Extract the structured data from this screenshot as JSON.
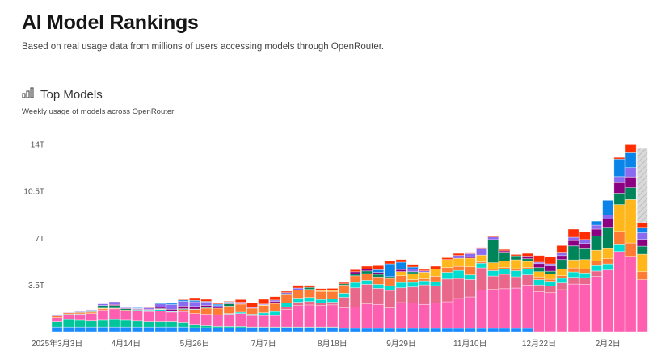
{
  "header": {
    "title": "AI Model Rankings",
    "subtitle": "Based on real usage data from millions of users accessing models through OpenRouter."
  },
  "section": {
    "icon": "bar-chart-icon",
    "title": "Top Models",
    "subtitle": "Weekly usage of models across OpenRouter"
  },
  "chart_data": {
    "type": "bar",
    "stacked": true,
    "title": "Top Models",
    "xlabel": "",
    "ylabel": "",
    "ylim": [
      0,
      14
    ],
    "y_unit": "T tokens",
    "y_ticks": [
      3.5,
      7,
      10.5,
      14
    ],
    "y_tick_labels": [
      "3.5T",
      "7T",
      "10.5T",
      "14T"
    ],
    "x_tick_labels": [
      {
        "index": 0,
        "label": "2025年3月3日"
      },
      {
        "index": 6,
        "label": "4月14日"
      },
      {
        "index": 12,
        "label": "5月26日"
      },
      {
        "index": 18,
        "label": "7月7日"
      },
      {
        "index": 24,
        "label": "8月18日"
      },
      {
        "index": 30,
        "label": "9月29日"
      },
      {
        "index": 36,
        "label": "11月10日"
      },
      {
        "index": 42,
        "label": "12月22日"
      },
      {
        "index": 48,
        "label": "2月2日"
      }
    ],
    "weeks": 52,
    "series_colors": [
      "#1a8cff",
      "#00c49a",
      "#ff5fb0",
      "#e8678a",
      "#00dcd0",
      "#ff7a33",
      "#ffb71b",
      "#00855a",
      "#8b0080",
      "#8a6af0",
      "#0a84e8",
      "#ff2d00",
      "#cfcfcf"
    ],
    "last_week_partial": true,
    "values_by_week": [
      [
        0.35,
        0.4,
        0.3,
        0,
        0,
        0.12,
        0,
        0,
        0,
        0.1,
        0,
        0,
        0
      ],
      [
        0.35,
        0.55,
        0.35,
        0,
        0.05,
        0.1,
        0,
        0,
        0,
        0.03,
        0,
        0,
        0
      ],
      [
        0.35,
        0.5,
        0.45,
        0,
        0.03,
        0.1,
        0,
        0.03,
        0,
        0.05,
        0,
        0,
        0
      ],
      [
        0.35,
        0.45,
        0.55,
        0,
        0,
        0.1,
        0.03,
        0.1,
        0,
        0.05,
        0,
        0,
        0
      ],
      [
        0.35,
        0.5,
        0.75,
        0,
        0,
        0.1,
        0.05,
        0.2,
        0,
        0.12,
        0,
        0,
        0
      ],
      [
        0.35,
        0.55,
        0.8,
        0,
        0,
        0.05,
        0,
        0.2,
        0.08,
        0.2,
        0,
        0,
        0
      ],
      [
        0.35,
        0.5,
        0.7,
        0,
        0,
        0.06,
        0,
        0.1,
        0.05,
        0.05,
        0,
        0,
        0
      ],
      [
        0.35,
        0.45,
        0.75,
        0,
        0.05,
        0,
        0,
        0.05,
        0.05,
        0.04,
        0.05,
        0,
        0
      ],
      [
        0.35,
        0.4,
        0.75,
        0,
        0.1,
        0,
        0,
        0.03,
        0.05,
        0.1,
        0,
        0.05,
        0
      ],
      [
        0.35,
        0.4,
        0.8,
        0,
        0.1,
        0,
        0.03,
        0.04,
        0.1,
        0.25,
        0.1,
        0,
        0
      ],
      [
        0.35,
        0.4,
        0.7,
        0,
        0.05,
        0,
        0.02,
        0,
        0.15,
        0.35,
        0.1,
        0.05,
        0
      ],
      [
        0.35,
        0.35,
        0.8,
        0,
        0.05,
        0.1,
        0,
        0.06,
        0.2,
        0.35,
        0.1,
        0.05,
        0
      ],
      [
        0.3,
        0.2,
        0.85,
        0,
        0,
        0.3,
        0,
        0.03,
        0.2,
        0.35,
        0.1,
        0.2,
        0
      ],
      [
        0.3,
        0.15,
        0.85,
        0,
        0,
        0.45,
        0,
        0.06,
        0.15,
        0.25,
        0.05,
        0.15,
        0
      ],
      [
        0.3,
        0.1,
        0.85,
        0,
        0,
        0.5,
        0,
        0,
        0.1,
        0.1,
        0.1,
        0.06,
        0
      ],
      [
        0.3,
        0.1,
        0.9,
        0,
        0.05,
        0.55,
        0,
        0.17,
        0.05,
        0.05,
        0.05,
        0.05,
        0
      ],
      [
        0.3,
        0.1,
        0.95,
        0,
        0.1,
        0.6,
        0,
        0,
        0.05,
        0.05,
        0.04,
        0.2,
        0
      ],
      [
        0.3,
        0.05,
        0.85,
        0,
        0.1,
        0.45,
        0,
        0,
        0.03,
        0.05,
        0,
        0.3,
        0
      ],
      [
        0.3,
        0.05,
        0.85,
        0,
        0.2,
        0.55,
        0.05,
        0,
        0,
        0.06,
        0,
        0.35,
        0
      ],
      [
        0.3,
        0.05,
        0.85,
        0,
        0.3,
        0.6,
        0.06,
        0,
        0.1,
        0.1,
        0,
        0.25,
        0
      ],
      [
        0.3,
        0.05,
        1.3,
        0.2,
        0.3,
        0.6,
        0,
        0.06,
        0,
        0.1,
        0,
        0.1,
        0
      ],
      [
        0.3,
        0.05,
        1.6,
        0.25,
        0.3,
        0.6,
        0,
        0,
        0,
        0.15,
        0,
        0.2,
        0
      ],
      [
        0.3,
        0.05,
        1.65,
        0.25,
        0.3,
        0.6,
        0,
        0.15,
        0,
        0,
        0,
        0.15,
        0
      ],
      [
        0.3,
        0.05,
        1.6,
        0.2,
        0.25,
        0.6,
        0.06,
        0,
        0,
        0,
        0,
        0.15,
        0
      ],
      [
        0.3,
        0.05,
        1.65,
        0.2,
        0.25,
        0.55,
        0.08,
        0,
        0,
        0,
        0,
        0.15,
        0
      ],
      [
        0.25,
        0,
        1.52,
        0.8,
        0.3,
        0.6,
        0,
        0.1,
        0,
        0,
        0,
        0.1,
        0
      ],
      [
        0.25,
        0,
        1.58,
        1.44,
        0.4,
        0.5,
        0,
        0.15,
        0.15,
        0,
        0,
        0.15,
        0
      ],
      [
        0.25,
        0,
        1.82,
        1.46,
        0.3,
        0.5,
        0,
        0.2,
        0.15,
        0,
        0,
        0.2,
        0
      ],
      [
        0.25,
        0,
        1.78,
        1.2,
        0.3,
        0.55,
        0,
        0.2,
        0.14,
        0,
        0.2,
        0.3,
        0
      ],
      [
        0.25,
        0,
        1.52,
        1.3,
        0.35,
        0.55,
        0,
        0.14,
        0,
        0,
        0.95,
        0.2,
        0
      ],
      [
        0.25,
        0,
        1.92,
        1.1,
        0.4,
        0.51,
        0.3,
        0,
        0.15,
        0,
        0.55,
        0.2,
        0
      ],
      [
        0.25,
        0,
        1.88,
        1.2,
        0.35,
        0.2,
        0.45,
        0.14,
        0,
        0.2,
        0.15,
        0.2,
        0
      ],
      [
        0.25,
        0,
        1.78,
        1.46,
        0.3,
        0.15,
        0.5,
        0,
        0,
        0.1,
        0,
        0.1,
        0
      ],
      [
        0.25,
        0,
        1.88,
        1.3,
        0.3,
        0.4,
        0.55,
        0,
        0,
        0,
        0,
        0.2,
        0
      ],
      [
        0.25,
        0,
        1.98,
        1.7,
        0.5,
        0.35,
        0.6,
        0,
        0,
        0,
        0,
        0.14,
        0
      ],
      [
        0.25,
        0,
        2.22,
        1.5,
        0.6,
        0.3,
        0.6,
        0,
        0,
        0.22,
        0,
        0.15,
        0
      ],
      [
        0.25,
        0,
        2.34,
        1.3,
        0.35,
        0.6,
        0.65,
        0,
        0.1,
        0.23,
        0,
        0.1,
        0
      ],
      [
        0.25,
        0,
        2.86,
        1.65,
        0.35,
        0.1,
        0.5,
        0,
        0,
        0.47,
        0,
        0.1,
        0
      ],
      [
        0.25,
        0,
        2.9,
        1.0,
        0.4,
        0.1,
        0.5,
        1.72,
        0,
        0.2,
        0,
        0.1,
        0
      ],
      [
        0.25,
        0,
        2.96,
        1.07,
        0.4,
        0.1,
        0.5,
        0.65,
        0.1,
        0,
        0,
        0.1,
        0
      ],
      [
        0.25,
        0,
        3.0,
        0.85,
        0.45,
        0.15,
        0.66,
        0.3,
        0,
        0,
        0,
        0.1,
        0
      ],
      [
        0.25,
        0,
        3.22,
        0.77,
        0.45,
        0.1,
        0.45,
        0.2,
        0.2,
        0,
        0,
        0.2,
        0
      ],
      [
        0,
        0,
        2.98,
        0.5,
        0.4,
        0.2,
        0.4,
        0.3,
        0.3,
        0.1,
        0,
        0.5,
        0
      ],
      [
        0,
        0,
        2.91,
        0.5,
        0.35,
        0.15,
        0.4,
        0.2,
        0.4,
        0.15,
        0,
        0.5,
        0
      ],
      [
        0,
        0,
        3.13,
        0.5,
        0.35,
        0.2,
        0.5,
        0.7,
        0.3,
        0.25,
        0,
        0.5,
        0
      ],
      [
        0,
        0,
        3.55,
        0.5,
        0.4,
        0.3,
        0.6,
        1.05,
        0.4,
        0.25,
        0,
        0.6,
        0
      ],
      [
        0,
        0,
        3.53,
        0.5,
        0.35,
        0.3,
        0.7,
        0.8,
        0.4,
        0.3,
        0,
        0.55,
        0
      ],
      [
        0,
        0,
        4.12,
        0.4,
        0.4,
        0.35,
        0.8,
        1.08,
        0.5,
        0.3,
        0.3,
        0,
        0
      ],
      [
        0,
        0,
        4.6,
        0,
        0.45,
        0.4,
        0.75,
        1.6,
        0.6,
        0.3,
        1.1,
        0,
        0
      ],
      [
        0,
        0,
        5.98,
        0,
        0.5,
        1.0,
        2.0,
        0.85,
        0.8,
        0.45,
        1.3,
        0.12,
        0
      ],
      [
        0,
        0,
        5.62,
        0,
        0,
        1.0,
        3.23,
        0.9,
        0.8,
        0.7,
        1.1,
        0.6,
        0
      ],
      [
        0,
        0,
        3.88,
        0,
        0,
        0.6,
        1.3,
        0.6,
        0.5,
        0.5,
        0.4,
        0.35,
        5.54
      ]
    ]
  }
}
